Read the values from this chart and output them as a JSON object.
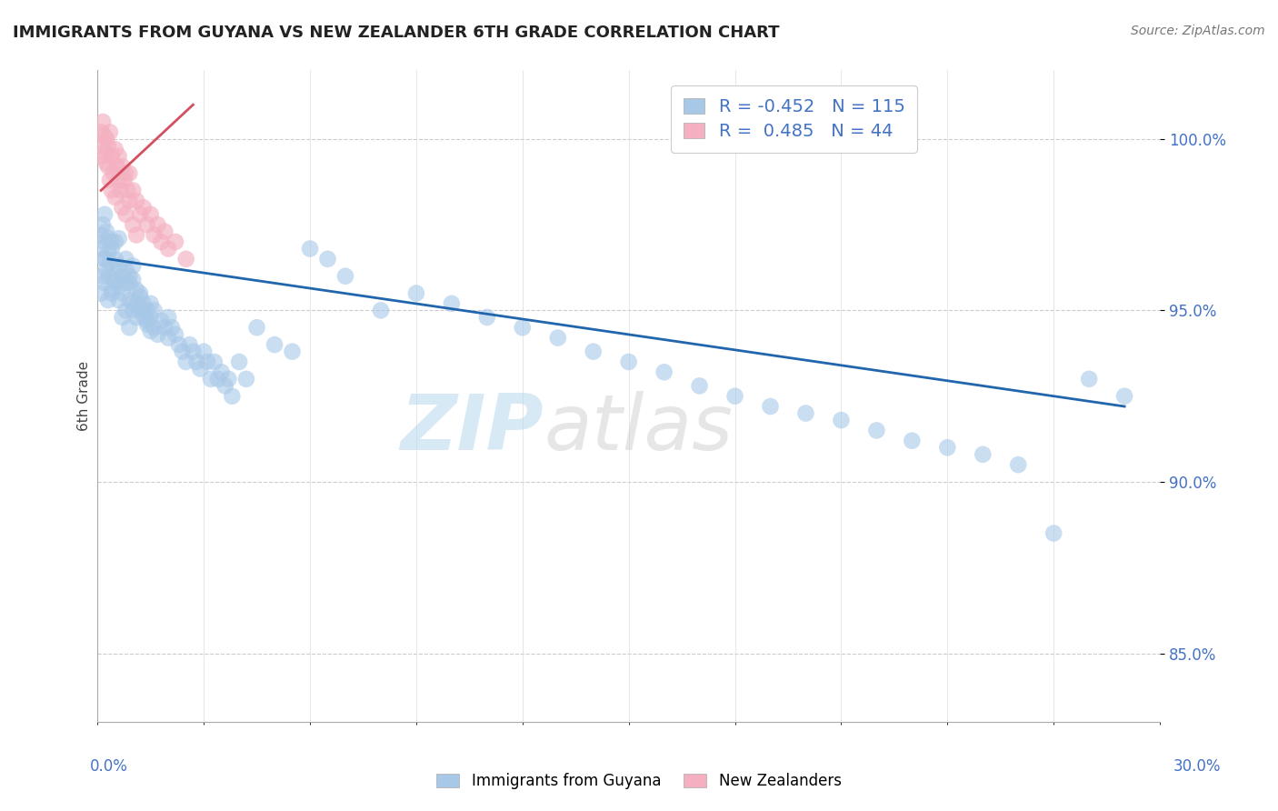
{
  "title": "IMMIGRANTS FROM GUYANA VS NEW ZEALANDER 6TH GRADE CORRELATION CHART",
  "source": "Source: ZipAtlas.com",
  "ylabel": "6th Grade",
  "blue_R": -0.452,
  "blue_N": 115,
  "pink_R": 0.485,
  "pink_N": 44,
  "blue_color": "#a8c8e8",
  "pink_color": "#f4b0c0",
  "blue_line_color": "#2166ac",
  "pink_line_color": "#d45060",
  "xlim": [
    0.0,
    30.0
  ],
  "ylim": [
    83.0,
    102.0
  ],
  "y_ticks": [
    85.0,
    90.0,
    95.0,
    100.0
  ],
  "blue_line_x0": 0.3,
  "blue_line_x1": 29.0,
  "blue_line_y0": 96.5,
  "blue_line_y1": 92.2,
  "pink_line_x0": 0.1,
  "pink_line_x1": 2.7,
  "pink_line_y0": 98.5,
  "pink_line_y1": 101.0,
  "blue_scatter_x": [
    0.1,
    0.1,
    0.1,
    0.15,
    0.15,
    0.2,
    0.2,
    0.2,
    0.2,
    0.25,
    0.25,
    0.3,
    0.3,
    0.3,
    0.35,
    0.4,
    0.4,
    0.4,
    0.5,
    0.5,
    0.5,
    0.5,
    0.6,
    0.6,
    0.6,
    0.7,
    0.7,
    0.8,
    0.8,
    0.8,
    0.9,
    0.9,
    0.9,
    1.0,
    1.0,
    1.0,
    1.1,
    1.1,
    1.2,
    1.2,
    1.3,
    1.3,
    1.4,
    1.4,
    1.5,
    1.5,
    1.6,
    1.6,
    1.7,
    1.8,
    1.9,
    2.0,
    2.0,
    2.1,
    2.2,
    2.3,
    2.4,
    2.5,
    2.6,
    2.7,
    2.8,
    2.9,
    3.0,
    3.1,
    3.2,
    3.3,
    3.4,
    3.5,
    3.6,
    3.7,
    3.8,
    4.0,
    4.2,
    4.5,
    5.0,
    5.5,
    6.0,
    6.5,
    7.0,
    8.0,
    9.0,
    10.0,
    11.0,
    12.0,
    13.0,
    14.0,
    15.0,
    16.0,
    17.0,
    18.0,
    19.0,
    20.0,
    21.0,
    22.0,
    23.0,
    24.0,
    25.0,
    26.0,
    27.0,
    28.0,
    29.0,
    0.2,
    0.3,
    0.4,
    0.5,
    0.6,
    0.7,
    0.8,
    0.9,
    1.0,
    1.1,
    1.2,
    1.3,
    1.4,
    1.5
  ],
  "blue_scatter_y": [
    96.8,
    97.2,
    95.5,
    97.5,
    96.0,
    97.0,
    96.5,
    95.8,
    97.8,
    97.3,
    96.2,
    96.7,
    97.1,
    95.3,
    96.4,
    97.0,
    95.6,
    96.8,
    96.5,
    95.9,
    97.0,
    96.2,
    96.3,
    95.7,
    97.1,
    96.0,
    95.5,
    96.2,
    95.8,
    96.5,
    95.8,
    96.0,
    95.3,
    95.9,
    96.3,
    95.0,
    95.6,
    95.2,
    95.4,
    95.0,
    95.2,
    94.8,
    95.0,
    94.6,
    94.8,
    95.2,
    94.5,
    95.0,
    94.3,
    94.7,
    94.5,
    94.8,
    94.2,
    94.5,
    94.3,
    94.0,
    93.8,
    93.5,
    94.0,
    93.8,
    93.5,
    93.3,
    93.8,
    93.5,
    93.0,
    93.5,
    93.0,
    93.2,
    92.8,
    93.0,
    92.5,
    93.5,
    93.0,
    94.5,
    94.0,
    93.8,
    96.8,
    96.5,
    96.0,
    95.0,
    95.5,
    95.2,
    94.8,
    94.5,
    94.2,
    93.8,
    93.5,
    93.2,
    92.8,
    92.5,
    92.2,
    92.0,
    91.8,
    91.5,
    91.2,
    91.0,
    90.8,
    90.5,
    88.5,
    93.0,
    92.5,
    96.5,
    96.0,
    95.5,
    95.8,
    95.3,
    94.8,
    95.0,
    94.5,
    95.2,
    94.8,
    95.5,
    95.0,
    94.7,
    94.4
  ],
  "pink_scatter_x": [
    0.1,
    0.1,
    0.15,
    0.15,
    0.2,
    0.2,
    0.25,
    0.25,
    0.3,
    0.3,
    0.35,
    0.35,
    0.4,
    0.4,
    0.45,
    0.5,
    0.5,
    0.55,
    0.6,
    0.6,
    0.65,
    0.7,
    0.7,
    0.75,
    0.8,
    0.8,
    0.85,
    0.9,
    0.9,
    1.0,
    1.0,
    1.1,
    1.1,
    1.2,
    1.3,
    1.4,
    1.5,
    1.6,
    1.7,
    1.8,
    1.9,
    2.0,
    2.2,
    2.5
  ],
  "pink_scatter_y": [
    99.5,
    100.2,
    99.8,
    100.5,
    99.6,
    100.1,
    99.3,
    100.0,
    99.8,
    99.2,
    100.2,
    98.8,
    99.5,
    98.5,
    99.0,
    99.7,
    98.3,
    99.2,
    98.8,
    99.5,
    98.5,
    99.2,
    98.0,
    98.8,
    99.0,
    97.8,
    98.5,
    98.2,
    99.0,
    98.5,
    97.5,
    98.2,
    97.2,
    97.8,
    98.0,
    97.5,
    97.8,
    97.2,
    97.5,
    97.0,
    97.3,
    96.8,
    97.0,
    96.5
  ]
}
